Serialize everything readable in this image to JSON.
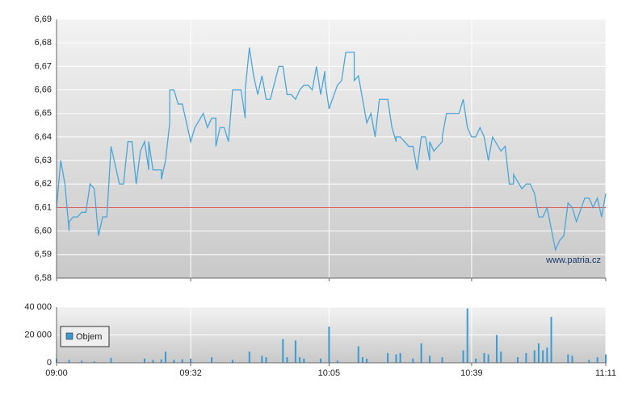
{
  "chart_data": [
    {
      "type": "line",
      "x": [
        "09:00",
        "09:01",
        "09:02",
        "09:03",
        "09:03",
        "09:04",
        "09:05",
        "09:06",
        "09:07",
        "09:08",
        "09:09",
        "09:10",
        "09:11",
        "09:12",
        "09:13",
        "09:15",
        "09:16",
        "09:17",
        "09:18",
        "09:19",
        "09:20",
        "09:21",
        "09:22",
        "09:22",
        "09:23",
        "09:25",
        "09:25",
        "09:26",
        "09:27",
        "09:27",
        "09:28",
        "09:29",
        "09:30",
        "09:32",
        "09:33",
        "09:35",
        "09:36",
        "09:37",
        "09:38",
        "09:38",
        "09:39",
        "09:40",
        "09:41",
        "09:42",
        "09:44",
        "09:45",
        "09:45",
        "09:46",
        "09:47",
        "09:48",
        "09:49",
        "09:50",
        "09:51",
        "09:53",
        "09:54",
        "09:55",
        "09:56",
        "09:57",
        "09:58",
        "09:59",
        "10:00",
        "10:01",
        "10:02",
        "10:03",
        "10:04",
        "10:04",
        "10:05",
        "10:07",
        "10:08",
        "10:09",
        "10:11",
        "10:11",
        "10:12",
        "10:13",
        "10:14",
        "10:15",
        "10:16",
        "10:17",
        "10:19",
        "10:20",
        "10:21",
        "10:21",
        "10:22",
        "10:24",
        "10:25",
        "10:26",
        "10:27",
        "10:28",
        "10:29",
        "10:29",
        "10:30",
        "10:31",
        "10:32",
        "10:32",
        "10:33",
        "10:36",
        "10:37",
        "10:38",
        "10:39",
        "10:40",
        "10:41",
        "10:42",
        "10:43",
        "10:44",
        "10:46",
        "10:47",
        "10:48",
        "10:49",
        "10:49",
        "10:51",
        "10:52",
        "10:53",
        "10:54",
        "10:55",
        "10:56",
        "10:57",
        "10:59",
        "11:00",
        "11:01",
        "11:02",
        "11:03",
        "11:04",
        "11:06",
        "11:07",
        "11:08",
        "11:09",
        "11:10",
        "11:11"
      ],
      "series": [
        {
          "color": "#4ba6d8",
          "values": [
            6.61,
            6.63,
            6.62,
            6.6,
            6.604,
            6.606,
            6.606,
            6.608,
            6.608,
            6.62,
            6.618,
            6.598,
            6.606,
            6.606,
            6.636,
            6.62,
            6.62,
            6.638,
            6.638,
            6.62,
            6.634,
            6.638,
            6.626,
            6.638,
            6.626,
            6.626,
            6.622,
            6.63,
            6.646,
            6.66,
            6.66,
            6.654,
            6.654,
            6.638,
            6.644,
            6.65,
            6.644,
            6.648,
            6.648,
            6.636,
            6.644,
            6.644,
            6.638,
            6.66,
            6.66,
            6.648,
            6.66,
            6.678,
            6.666,
            6.658,
            6.666,
            6.656,
            6.656,
            6.67,
            6.67,
            6.658,
            6.658,
            6.656,
            6.66,
            6.662,
            6.662,
            6.66,
            6.67,
            6.658,
            6.668,
            6.664,
            6.652,
            6.662,
            6.664,
            6.676,
            6.676,
            6.664,
            6.666,
            6.656,
            6.646,
            6.65,
            6.64,
            6.656,
            6.656,
            6.644,
            6.638,
            6.64,
            6.64,
            6.636,
            6.636,
            6.626,
            6.64,
            6.64,
            6.63,
            6.638,
            6.634,
            6.636,
            6.638,
            6.64,
            6.65,
            6.65,
            6.656,
            6.644,
            6.64,
            6.64,
            6.644,
            6.64,
            6.63,
            6.64,
            6.634,
            6.636,
            6.62,
            6.62,
            6.624,
            6.618,
            6.62,
            6.62,
            6.616,
            6.606,
            6.606,
            6.61,
            6.592,
            6.596,
            6.598,
            6.612,
            6.61,
            6.604,
            6.614,
            6.614,
            6.61,
            6.614,
            6.606,
            6.616
          ]
        }
      ],
      "xlim": [
        "09:00",
        "11:11"
      ],
      "ylim": [
        6.58,
        6.69
      ],
      "yticks": [
        {
          "value": 6.58,
          "label": "6,58"
        },
        {
          "value": 6.59,
          "label": "6,59"
        },
        {
          "value": 6.6,
          "label": "6,60"
        },
        {
          "value": 6.61,
          "label": "6,61"
        },
        {
          "value": 6.62,
          "label": "6,62"
        },
        {
          "value": 6.63,
          "label": "6,63"
        },
        {
          "value": 6.64,
          "label": "6,64"
        },
        {
          "value": 6.65,
          "label": "6,65"
        },
        {
          "value": 6.66,
          "label": "6,66"
        },
        {
          "value": 6.67,
          "label": "6,67"
        },
        {
          "value": 6.68,
          "label": "6,68"
        },
        {
          "value": 6.69,
          "label": "6,69"
        }
      ],
      "reference_line": {
        "value": 6.61,
        "color": "#e06060"
      },
      "annotation": "www.patria.cz",
      "grid": true
    },
    {
      "type": "bar",
      "x": [
        "09:00",
        "09:03",
        "09:06",
        "09:09",
        "09:13",
        "09:21",
        "09:23",
        "09:25",
        "09:26",
        "09:28",
        "09:30",
        "09:32",
        "09:37",
        "09:42",
        "09:46",
        "09:49",
        "09:50",
        "09:54",
        "09:55",
        "09:57",
        "09:58",
        "09:59",
        "10:03",
        "10:05",
        "10:07",
        "10:12",
        "10:13",
        "10:14",
        "10:19",
        "10:21",
        "10:22",
        "10:25",
        "10:27",
        "10:29",
        "10:32",
        "10:37",
        "10:38",
        "10:40",
        "10:42",
        "10:43",
        "10:45",
        "10:46",
        "10:50",
        "10:52",
        "10:54",
        "10:55",
        "10:56",
        "10:57",
        "10:58",
        "11:02",
        "11:03",
        "11:07",
        "11:09",
        "11:11"
      ],
      "series": [
        {
          "name": "Objem",
          "color": "#3d9ad1",
          "values": [
            3000,
            2000,
            1500,
            1000,
            3500,
            3000,
            2000,
            2500,
            8000,
            2000,
            2500,
            3000,
            4000,
            2000,
            8000,
            5000,
            4000,
            17000,
            4000,
            16000,
            4000,
            3000,
            3000,
            26000,
            1500,
            12000,
            4000,
            3000,
            7000,
            6000,
            7000,
            3000,
            14000,
            5000,
            4000,
            9000,
            39000,
            3000,
            7000,
            6000,
            20000,
            8000,
            4000,
            7000,
            9000,
            14000,
            9000,
            11000,
            33000,
            6000,
            5000,
            2000,
            4000,
            6000
          ]
        }
      ],
      "xlim": [
        "09:00",
        "11:11"
      ],
      "xticks": [
        "09:00",
        "09:32",
        "10:05",
        "10:39",
        "11:11"
      ],
      "ylim": [
        0,
        40000
      ],
      "yticks": [
        0,
        {
          "value": 20000,
          "label": "20 000"
        },
        {
          "value": 40000,
          "label": "40 000"
        }
      ],
      "grid": true,
      "legend": "upper-left"
    }
  ]
}
